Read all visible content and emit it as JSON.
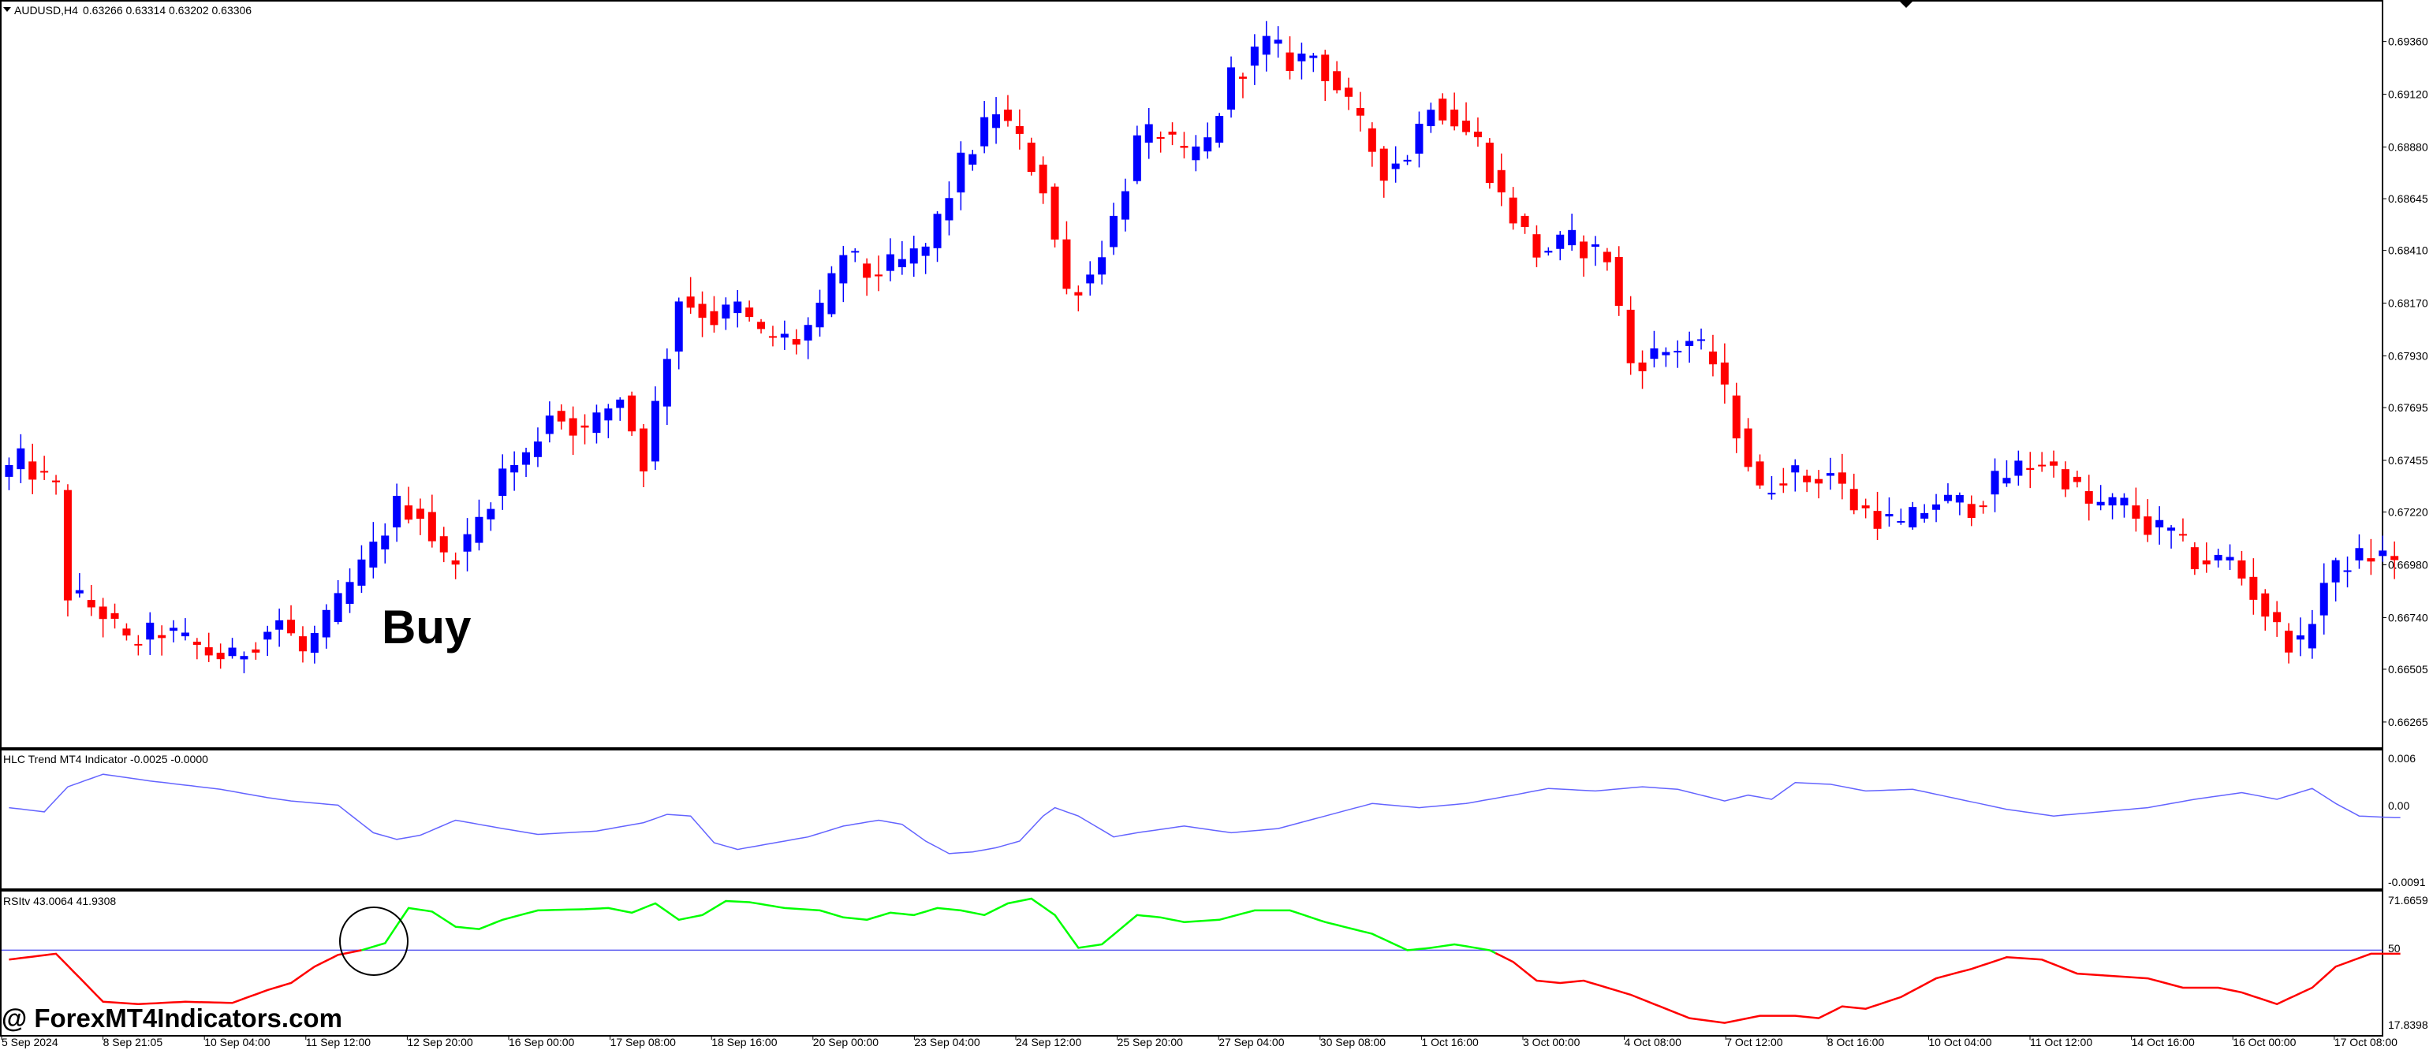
{
  "header": {
    "symbol_label": "AUDUSD,H4",
    "ohlc_label": "0.63266 0.63314 0.63202 0.63306"
  },
  "indicator1": {
    "label": "HLC Trend MT4 Indicator -0.0025 -0.0000",
    "ticks": [
      "0.006",
      "0.00",
      "-0.0091"
    ]
  },
  "indicator2": {
    "label": "RSItv 43.0064 41.9308",
    "ticks": [
      "71.6659",
      "50",
      "17.8398"
    ]
  },
  "annotation": {
    "text": "Buy"
  },
  "watermark": {
    "text": "@ ForexMT4Indicators.com"
  },
  "colors": {
    "bull": "#0000ff",
    "bear": "#ff0000",
    "hlc_line": "#6464ff",
    "rsi_up": "#00ff00",
    "rsi_down": "#ff0000",
    "midline": "#5a5af0"
  },
  "chart_data": [
    {
      "type": "candlestick",
      "title": "AUDUSD,H4",
      "ylim": [
        0.6615,
        0.6952
      ],
      "price_ticks": [
        "0.69360",
        "0.69120",
        "0.68880",
        "0.68645",
        "0.68410",
        "0.68170",
        "0.67930",
        "0.67695",
        "0.67455",
        "0.67220",
        "0.66980",
        "0.66740",
        "0.66505",
        "0.66265"
      ],
      "x_tick_labels": [
        "5 Sep 2024",
        "8 Sep 21:05",
        "10 Sep 04:00",
        "11 Sep 12:00",
        "12 Sep 20:00",
        "16 Sep 00:00",
        "17 Sep 08:00",
        "18 Sep 16:00",
        "20 Sep 00:00",
        "23 Sep 04:00",
        "24 Sep 12:00",
        "25 Sep 20:00",
        "27 Sep 04:00",
        "30 Sep 08:00",
        "1 Oct 16:00",
        "3 Oct 00:00",
        "4 Oct 08:00",
        "7 Oct 12:00",
        "8 Oct 16:00",
        "10 Oct 04:00",
        "11 Oct 12:00",
        "14 Oct 16:00",
        "16 Oct 00:00",
        "17 Oct 08:00"
      ],
      "anchors": [
        [
          0,
          0.6738
        ],
        [
          2,
          0.6745
        ],
        [
          5,
          0.6732
        ],
        [
          6,
          0.6685
        ],
        [
          9,
          0.6676
        ],
        [
          11,
          0.6662
        ],
        [
          14,
          0.6668
        ],
        [
          18,
          0.6658
        ],
        [
          20,
          0.6655
        ],
        [
          24,
          0.6673
        ],
        [
          26,
          0.6658
        ],
        [
          28,
          0.6672
        ],
        [
          32,
          0.6705
        ],
        [
          34,
          0.6725
        ],
        [
          36,
          0.6722
        ],
        [
          38,
          0.67
        ],
        [
          40,
          0.6708
        ],
        [
          43,
          0.674
        ],
        [
          45,
          0.6747
        ],
        [
          47,
          0.6768
        ],
        [
          50,
          0.6758
        ],
        [
          53,
          0.6775
        ],
        [
          55,
          0.6745
        ],
        [
          58,
          0.682
        ],
        [
          61,
          0.681
        ],
        [
          63,
          0.6815
        ],
        [
          65,
          0.6802
        ],
        [
          68,
          0.68
        ],
        [
          70,
          0.6812
        ],
        [
          72,
          0.684
        ],
        [
          74,
          0.683
        ],
        [
          77,
          0.6835
        ],
        [
          79,
          0.6842
        ],
        [
          82,
          0.688
        ],
        [
          85,
          0.6905
        ],
        [
          87,
          0.689
        ],
        [
          89,
          0.687
        ],
        [
          91,
          0.6822
        ],
        [
          93,
          0.683
        ],
        [
          95,
          0.6855
        ],
        [
          97,
          0.689
        ],
        [
          99,
          0.6895
        ],
        [
          101,
          0.6882
        ],
        [
          103,
          0.689
        ],
        [
          105,
          0.692
        ],
        [
          108,
          0.6935
        ],
        [
          110,
          0.6927
        ],
        [
          112,
          0.693
        ],
        [
          114,
          0.6915
        ],
        [
          118,
          0.6878
        ],
        [
          120,
          0.6885
        ],
        [
          122,
          0.691
        ],
        [
          126,
          0.689
        ],
        [
          128,
          0.6865
        ],
        [
          131,
          0.684
        ],
        [
          134,
          0.6845
        ],
        [
          137,
          0.6838
        ],
        [
          139,
          0.679
        ],
        [
          142,
          0.6795
        ],
        [
          144,
          0.68
        ],
        [
          146,
          0.679
        ],
        [
          148,
          0.676
        ],
        [
          150,
          0.673
        ],
        [
          152,
          0.674
        ],
        [
          154,
          0.6737
        ],
        [
          156,
          0.674
        ],
        [
          158,
          0.6725
        ],
        [
          160,
          0.672
        ],
        [
          162,
          0.6715
        ],
        [
          165,
          0.6727
        ],
        [
          168,
          0.6725
        ],
        [
          170,
          0.6735
        ],
        [
          172,
          0.6742
        ],
        [
          174,
          0.6745
        ],
        [
          176,
          0.6738
        ],
        [
          178,
          0.6725
        ],
        [
          181,
          0.6725
        ],
        [
          183,
          0.6715
        ],
        [
          185,
          0.6712
        ],
        [
          187,
          0.67
        ],
        [
          190,
          0.67
        ],
        [
          192,
          0.6685
        ],
        [
          194,
          0.6668
        ],
        [
          196,
          0.666
        ],
        [
          198,
          0.669
        ],
        [
          200,
          0.67
        ],
        [
          202,
          0.6702
        ]
      ]
    },
    {
      "type": "line",
      "title": "HLC Trend MT4 Indicator -0.0025 -0.0000",
      "ylim": [
        -0.0091,
        0.006
      ],
      "values_per_candle": [
        [
          0,
          0.0
        ],
        [
          3,
          -0.0005
        ],
        [
          5,
          0.0025
        ],
        [
          8,
          0.004
        ],
        [
          12,
          0.0032
        ],
        [
          18,
          0.0022
        ],
        [
          22,
          0.0012
        ],
        [
          24,
          0.0008
        ],
        [
          28,
          0.0003
        ],
        [
          31,
          -0.003
        ],
        [
          33,
          -0.0038
        ],
        [
          35,
          -0.0033
        ],
        [
          38,
          -0.0015
        ],
        [
          42,
          -0.0025
        ],
        [
          45,
          -0.0032
        ],
        [
          50,
          -0.0028
        ],
        [
          54,
          -0.0018
        ],
        [
          56,
          -0.0008
        ],
        [
          58,
          -0.001
        ],
        [
          60,
          -0.0042
        ],
        [
          62,
          -0.005
        ],
        [
          64,
          -0.0045
        ],
        [
          68,
          -0.0035
        ],
        [
          71,
          -0.0022
        ],
        [
          74,
          -0.0015
        ],
        [
          76,
          -0.002
        ],
        [
          78,
          -0.004
        ],
        [
          80,
          -0.0055
        ],
        [
          82,
          -0.0053
        ],
        [
          84,
          -0.0048
        ],
        [
          86,
          -0.004
        ],
        [
          88,
          -0.001
        ],
        [
          89,
          0.0
        ],
        [
          91,
          -0.001
        ],
        [
          94,
          -0.0035
        ],
        [
          96,
          -0.003
        ],
        [
          100,
          -0.0022
        ],
        [
          104,
          -0.003
        ],
        [
          108,
          -0.0025
        ],
        [
          112,
          -0.001
        ],
        [
          116,
          0.0005
        ],
        [
          120,
          0.0
        ],
        [
          124,
          0.0005
        ],
        [
          128,
          0.0015
        ],
        [
          131,
          0.0023
        ],
        [
          135,
          0.002
        ],
        [
          139,
          0.0025
        ],
        [
          142,
          0.0022
        ],
        [
          146,
          0.0008
        ],
        [
          148,
          0.0015
        ],
        [
          150,
          0.001
        ],
        [
          152,
          0.003
        ],
        [
          155,
          0.0028
        ],
        [
          158,
          0.002
        ],
        [
          162,
          0.0022
        ],
        [
          166,
          0.001
        ],
        [
          170,
          -0.0002
        ],
        [
          174,
          -0.001
        ],
        [
          178,
          -0.0005
        ],
        [
          182,
          0.0
        ],
        [
          186,
          0.001
        ],
        [
          190,
          0.0018
        ],
        [
          193,
          0.001
        ],
        [
          196,
          0.0023
        ],
        [
          198,
          0.0005
        ],
        [
          200,
          -0.001
        ],
        [
          203,
          -0.0012
        ]
      ]
    },
    {
      "type": "line",
      "title": "RSItv 43.0064 41.9308",
      "ylim": [
        17.8398,
        71.6659
      ],
      "midline": 50,
      "values_per_candle": [
        [
          0,
          46.0
        ],
        [
          4,
          48.5
        ],
        [
          8,
          28.0
        ],
        [
          11,
          27.0
        ],
        [
          15,
          28.0
        ],
        [
          19,
          27.5
        ],
        [
          22,
          33.0
        ],
        [
          24,
          36.0
        ],
        [
          26,
          43.0
        ],
        [
          28,
          48.0
        ],
        [
          30,
          50.0
        ],
        [
          32,
          53.0
        ],
        [
          34,
          68.0
        ],
        [
          36,
          66.5
        ],
        [
          38,
          60.0
        ],
        [
          40,
          59.0
        ],
        [
          42,
          63.0
        ],
        [
          45,
          67.0
        ],
        [
          49,
          67.5
        ],
        [
          51,
          68.0
        ],
        [
          53,
          66.0
        ],
        [
          55,
          70.0
        ],
        [
          57,
          63.0
        ],
        [
          59,
          65.0
        ],
        [
          61,
          71.0
        ],
        [
          63,
          70.5
        ],
        [
          66,
          68.0
        ],
        [
          69,
          67.0
        ],
        [
          71,
          64.0
        ],
        [
          73,
          63.0
        ],
        [
          75,
          66.0
        ],
        [
          77,
          65.0
        ],
        [
          79,
          68.0
        ],
        [
          81,
          67.0
        ],
        [
          83,
          65.0
        ],
        [
          85,
          70.0
        ],
        [
          87,
          72.0
        ],
        [
          89,
          65.0
        ],
        [
          91,
          51.0
        ],
        [
          93,
          52.5
        ],
        [
          96,
          65.0
        ],
        [
          98,
          64.0
        ],
        [
          100,
          62.0
        ],
        [
          103,
          63.0
        ],
        [
          106,
          67.0
        ],
        [
          109,
          67.0
        ],
        [
          112,
          62.0
        ],
        [
          116,
          57.0
        ],
        [
          119,
          50.0
        ],
        [
          121,
          51.0
        ],
        [
          123,
          52.5
        ],
        [
          126,
          50.0
        ],
        [
          128,
          45.0
        ],
        [
          130,
          37.0
        ],
        [
          132,
          36.0
        ],
        [
          134,
          37.0
        ],
        [
          136,
          34.0
        ],
        [
          138,
          31.0
        ],
        [
          140,
          27.0
        ],
        [
          143,
          21.0
        ],
        [
          146,
          19.0
        ],
        [
          149,
          22.0
        ],
        [
          152,
          22.0
        ],
        [
          154,
          21.0
        ],
        [
          156,
          26.0
        ],
        [
          158,
          25.0
        ],
        [
          161,
          30.0
        ],
        [
          164,
          38.0
        ],
        [
          167,
          42.0
        ],
        [
          170,
          47.0
        ],
        [
          173,
          46.0
        ],
        [
          176,
          40.0
        ],
        [
          179,
          39.0
        ],
        [
          182,
          38.0
        ],
        [
          185,
          34.0
        ],
        [
          188,
          34.0
        ],
        [
          190,
          32.0
        ],
        [
          193,
          27.0
        ],
        [
          196,
          34.0
        ],
        [
          198,
          43.0
        ],
        [
          201,
          48.5
        ]
      ]
    }
  ]
}
